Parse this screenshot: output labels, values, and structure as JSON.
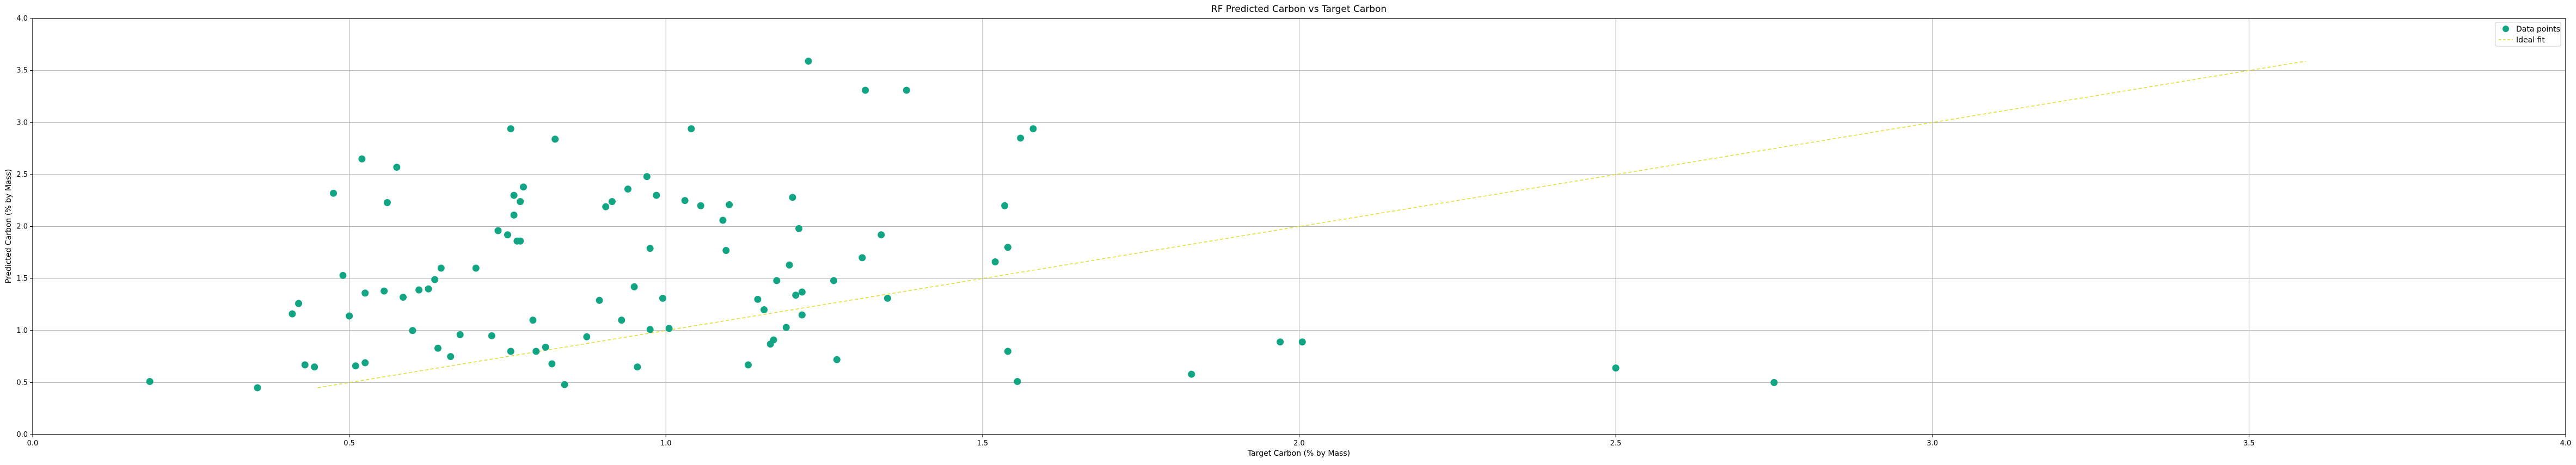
{
  "chart_data": {
    "type": "scatter",
    "title": "RF Predicted Carbon vs Target Carbon",
    "xlabel": "Target Carbon (% by Mass)",
    "ylabel": "Predicted Carbon (% by Mass)",
    "xlim": [
      0.0,
      4.0
    ],
    "ylim": [
      0.0,
      4.0
    ],
    "xticks": [
      "0.0",
      "0.5",
      "1.0",
      "1.5",
      "2.0",
      "2.5",
      "3.0",
      "3.5",
      "4.0"
    ],
    "yticks": [
      "0.0",
      "0.5",
      "1.0",
      "1.5",
      "2.0",
      "2.5",
      "3.0",
      "3.5",
      "4.0"
    ],
    "grid": true,
    "legend_position": "top-right",
    "legend": [
      "Data points",
      "Ideal fit"
    ],
    "colors": {
      "points": "#12a583",
      "ideal": "#e2dc2c"
    },
    "series": [
      {
        "name": "Data points",
        "points": [
          [
            0.185,
            0.51
          ],
          [
            0.355,
            0.45
          ],
          [
            0.41,
            1.16
          ],
          [
            0.42,
            1.26
          ],
          [
            0.43,
            0.67
          ],
          [
            0.445,
            0.65
          ],
          [
            0.475,
            2.32
          ],
          [
            0.49,
            1.53
          ],
          [
            0.5,
            1.14
          ],
          [
            0.51,
            0.66
          ],
          [
            0.52,
            2.65
          ],
          [
            0.525,
            0.69
          ],
          [
            0.525,
            1.36
          ],
          [
            0.555,
            1.38
          ],
          [
            0.56,
            2.23
          ],
          [
            0.575,
            2.57
          ],
          [
            0.585,
            1.32
          ],
          [
            0.6,
            1.0
          ],
          [
            0.61,
            1.39
          ],
          [
            0.625,
            1.4
          ],
          [
            0.635,
            1.49
          ],
          [
            0.64,
            0.83
          ],
          [
            0.645,
            1.6
          ],
          [
            0.66,
            0.75
          ],
          [
            0.675,
            0.96
          ],
          [
            0.7,
            1.6
          ],
          [
            0.725,
            0.95
          ],
          [
            0.735,
            1.96
          ],
          [
            0.75,
            1.92
          ],
          [
            0.755,
            0.8
          ],
          [
            0.755,
            2.94
          ],
          [
            0.76,
            2.11
          ],
          [
            0.76,
            2.3
          ],
          [
            0.765,
            1.86
          ],
          [
            0.77,
            1.86
          ],
          [
            0.77,
            2.24
          ],
          [
            0.775,
            2.38
          ],
          [
            0.79,
            1.1
          ],
          [
            0.795,
            0.8
          ],
          [
            0.81,
            0.84
          ],
          [
            0.82,
            0.68
          ],
          [
            0.825,
            2.84
          ],
          [
            0.84,
            0.48
          ],
          [
            0.875,
            0.94
          ],
          [
            0.895,
            1.29
          ],
          [
            0.905,
            2.19
          ],
          [
            0.915,
            2.24
          ],
          [
            0.93,
            1.1
          ],
          [
            0.94,
            2.36
          ],
          [
            0.95,
            1.42
          ],
          [
            0.955,
            0.65
          ],
          [
            0.97,
            2.48
          ],
          [
            0.975,
            1.79
          ],
          [
            0.975,
            1.01
          ],
          [
            0.985,
            2.3
          ],
          [
            0.995,
            1.31
          ],
          [
            1.005,
            1.02
          ],
          [
            1.03,
            2.25
          ],
          [
            1.04,
            2.94
          ],
          [
            1.055,
            2.2
          ],
          [
            1.09,
            2.06
          ],
          [
            1.095,
            1.77
          ],
          [
            1.1,
            2.21
          ],
          [
            1.13,
            0.67
          ],
          [
            1.145,
            1.3
          ],
          [
            1.155,
            1.2
          ],
          [
            1.165,
            0.87
          ],
          [
            1.17,
            0.91
          ],
          [
            1.175,
            1.48
          ],
          [
            1.19,
            1.03
          ],
          [
            1.195,
            1.63
          ],
          [
            1.2,
            2.28
          ],
          [
            1.205,
            1.34
          ],
          [
            1.21,
            1.98
          ],
          [
            1.215,
            1.37
          ],
          [
            1.215,
            1.15
          ],
          [
            1.225,
            3.59
          ],
          [
            1.265,
            1.48
          ],
          [
            1.27,
            0.72
          ],
          [
            1.31,
            1.7
          ],
          [
            1.315,
            3.31
          ],
          [
            1.34,
            1.92
          ],
          [
            1.35,
            1.31
          ],
          [
            1.38,
            3.31
          ],
          [
            1.52,
            1.66
          ],
          [
            1.535,
            2.2
          ],
          [
            1.54,
            0.8
          ],
          [
            1.54,
            1.8
          ],
          [
            1.555,
            0.51
          ],
          [
            1.56,
            2.85
          ],
          [
            1.58,
            2.94
          ],
          [
            1.83,
            0.58
          ],
          [
            1.97,
            0.89
          ],
          [
            2.005,
            0.89
          ],
          [
            2.5,
            0.64
          ],
          [
            2.75,
            0.5
          ]
        ]
      },
      {
        "name": "Ideal fit",
        "points": [
          [
            0.45,
            0.45
          ],
          [
            3.59,
            3.59
          ]
        ]
      }
    ]
  }
}
